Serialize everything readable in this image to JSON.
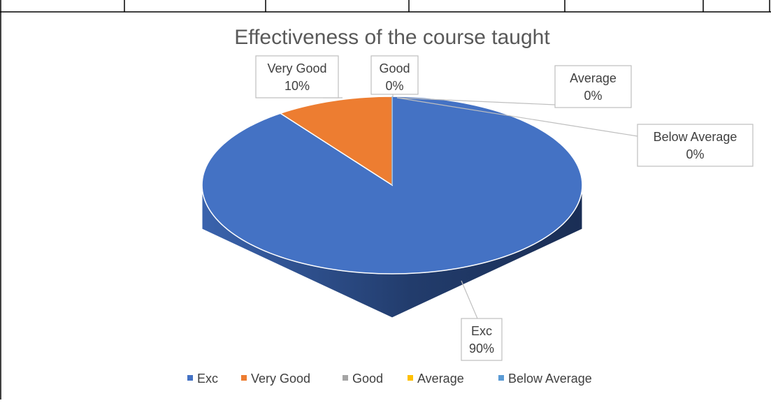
{
  "chart_data": {
    "type": "pie",
    "title": "Effectiveness of the course taught",
    "categories": [
      "Exc",
      "Very Good",
      "Good",
      "Average",
      "Below Average"
    ],
    "values": [
      90,
      10,
      0,
      0,
      0
    ],
    "value_labels": [
      "90%",
      "10%",
      "0%",
      "0%",
      "0%"
    ],
    "colors": [
      "#4472c4",
      "#ed7d31",
      "#a5a5a5",
      "#ffc000",
      "#5b9bd5"
    ],
    "legend": "bottom"
  }
}
